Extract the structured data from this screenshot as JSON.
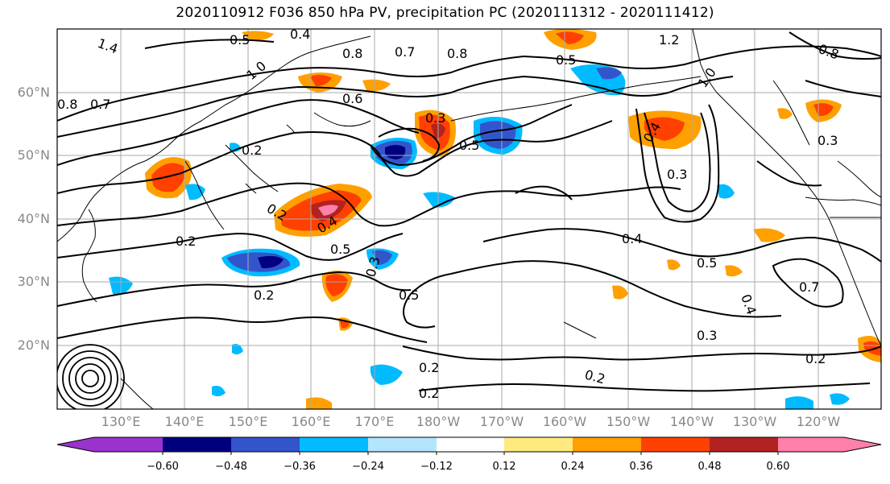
{
  "title": "2020110912 F036 850 hPa PV, precipitation PC (2020111312 - 2020111412)",
  "lat_labels": [
    "20°N",
    "30°N",
    "40°N",
    "50°N",
    "60°N"
  ],
  "lon_labels": [
    "130°E",
    "140°E",
    "150°E",
    "160°E",
    "170°E",
    "180°W",
    "170°W",
    "160°W",
    "150°W",
    "140°W",
    "130°W",
    "120°W"
  ],
  "colorbar": {
    "ticks": [
      "−0.60",
      "−0.48",
      "−0.36",
      "−0.24",
      "−0.12",
      "0.12",
      "0.24",
      "0.36",
      "0.48",
      "0.60"
    ],
    "colors": [
      "#9a33cc",
      "#00007f",
      "#3355cc",
      "#00bbff",
      "#b3e5fc",
      "#ffffff",
      "#ffea80",
      "#ffa000",
      "#ff4000",
      "#b22222",
      "#ff80aa"
    ]
  },
  "contour_labels": [
    "1.4",
    "0.5",
    "0.4",
    "0.8",
    "0.7",
    "0.8",
    "0.5",
    "1.2",
    "0.8",
    "1.0",
    "0.8",
    "0.7",
    "0.6",
    "0.3",
    "0.5",
    "0.4",
    "1.0",
    "0.3",
    "0.2",
    "0.2",
    "0.4",
    "0.5",
    "0.3",
    "0.4",
    "0.2",
    "0.2",
    "0.5",
    "0.4",
    "0.5",
    "0.7",
    "0.3",
    "0.2",
    "0.2",
    "0.2",
    "0.2",
    "0.3"
  ],
  "colors": {
    "contour": "#000000",
    "grid": "#aaaaaa",
    "coast": "#000000"
  }
}
